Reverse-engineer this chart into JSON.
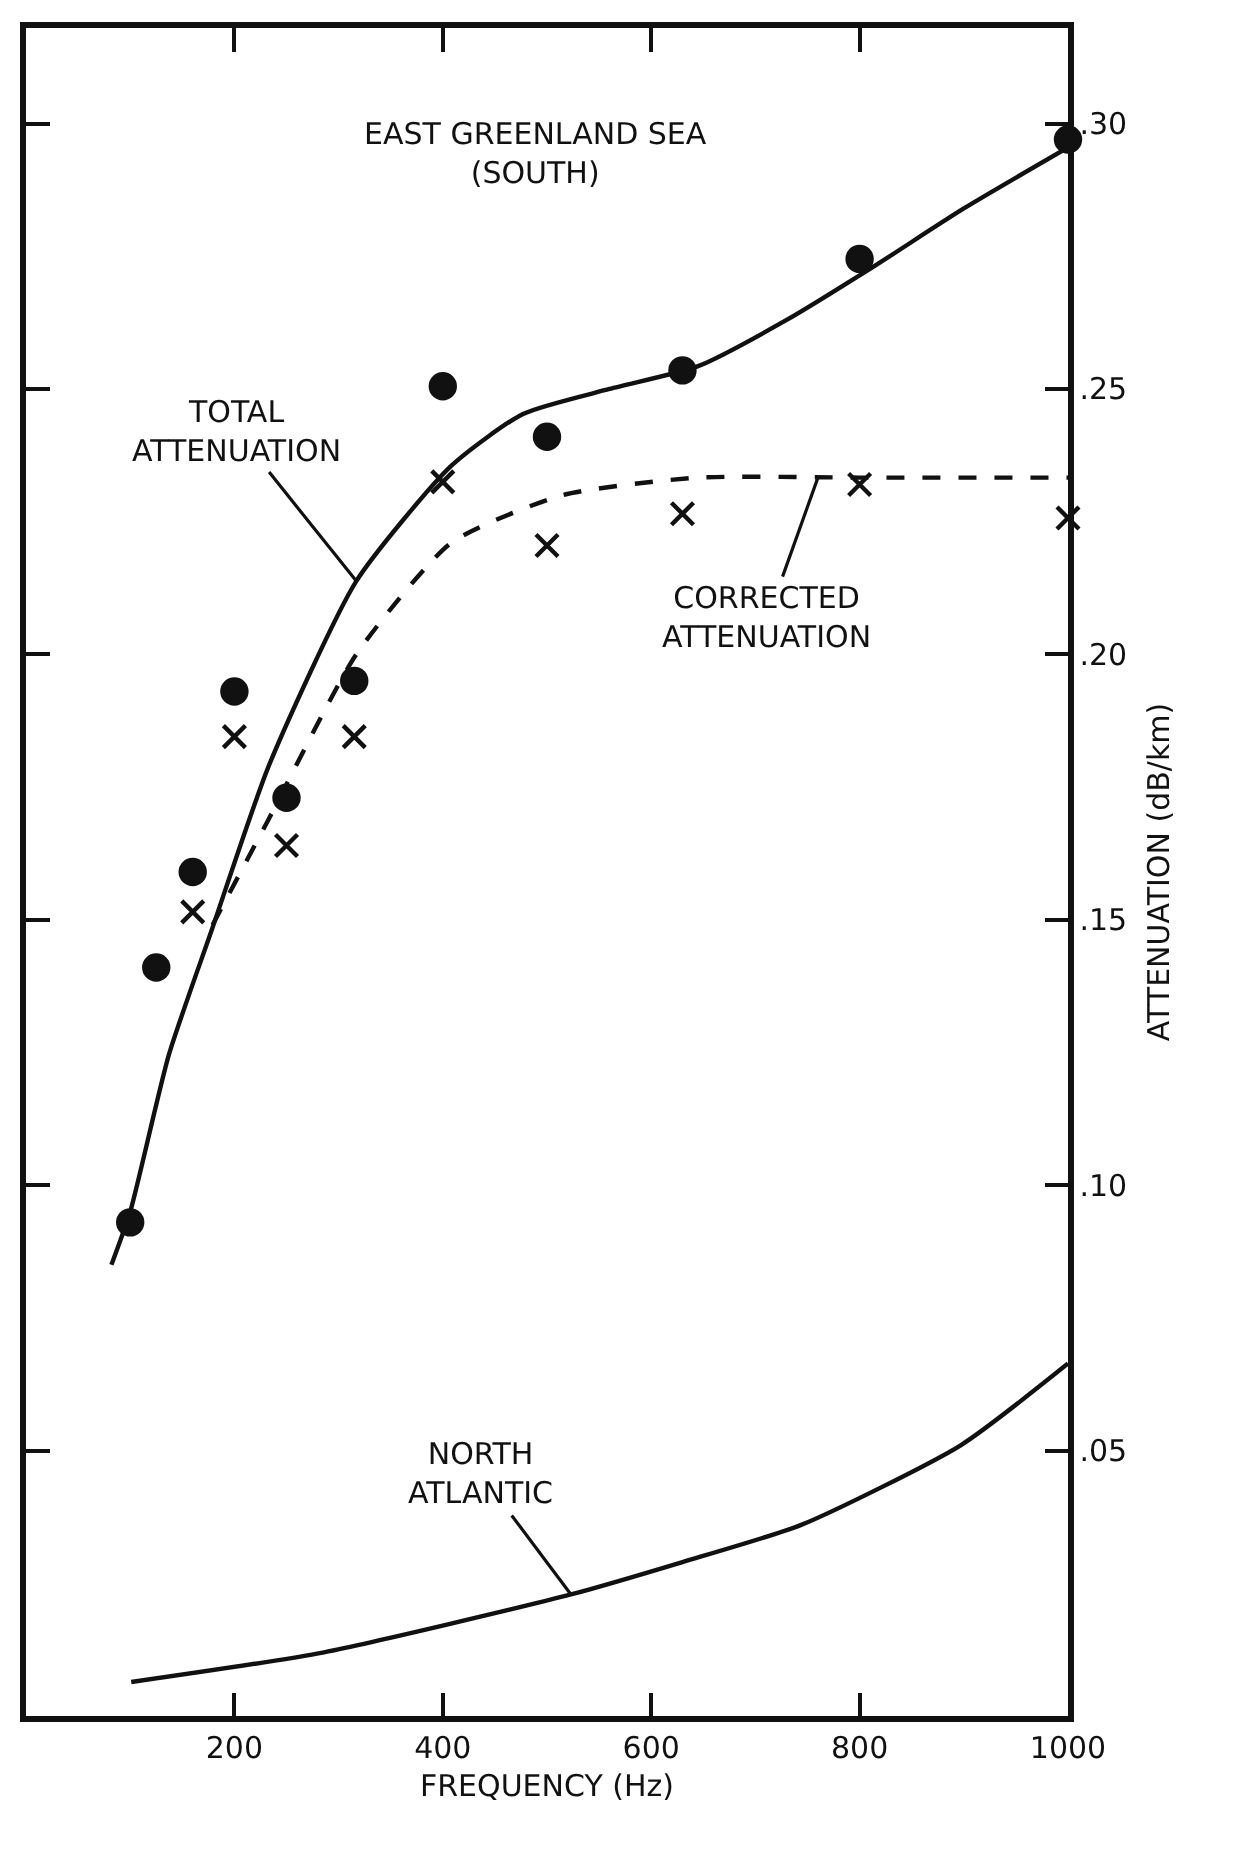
{
  "chart_data": {
    "type": "line",
    "xlabel": "FREQUENCY (Hz)",
    "ylabel": "ATTENUATION (dB/km)",
    "xlim": [
      0,
      1000
    ],
    "xticks": [
      {
        "value": 200,
        "label": "200"
      },
      {
        "value": 400,
        "label": "400"
      },
      {
        "value": 600,
        "label": "600"
      },
      {
        "value": 800,
        "label": "800"
      },
      {
        "value": 1000,
        "label": "1000"
      }
    ],
    "ylim": [
      0,
      0.318
    ],
    "yticks": [
      {
        "value": 0.05,
        "label": ".05"
      },
      {
        "value": 0.1,
        "label": ".10"
      },
      {
        "value": 0.15,
        "label": ".15"
      },
      {
        "value": 0.2,
        "label": ".20"
      },
      {
        "value": 0.25,
        "label": ".25"
      },
      {
        "value": 0.3,
        "label": ".30"
      }
    ],
    "series": [
      {
        "line_style": "solid",
        "color": "#111111",
        "x": [
          82,
          100,
          137,
          179,
          233,
          317,
          408,
          477,
          560,
          645,
          730,
          813,
          900,
          1000
        ],
        "values": [
          0.085,
          0.095,
          0.1245,
          0.1485,
          0.179,
          0.2138,
          0.2355,
          0.2453,
          0.25,
          0.2543,
          0.263,
          0.273,
          0.284,
          0.2955
        ]
      },
      {
        "line_style": "dashed",
        "color": "#111111",
        "x": [
          179,
          233,
          317,
          408,
          515,
          645,
          800,
          1000
        ],
        "values": [
          0.149,
          0.169,
          0.2,
          0.221,
          0.23,
          0.2333,
          0.2333,
          0.2333
        ]
      },
      {
        "line_style": "solid",
        "color": "#111111",
        "x": [
          101,
          286,
          523,
          630,
          744,
          897,
          1000
        ],
        "values": [
          0.0064,
          0.012,
          0.0229,
          0.029,
          0.036,
          0.051,
          0.0664
        ]
      },
      {
        "type": "scatter",
        "marker": "circle",
        "color": "#111111",
        "x": [
          100,
          125,
          160,
          200,
          250,
          315,
          400,
          500,
          630,
          800,
          1000
        ],
        "values": [
          0.093,
          0.141,
          0.159,
          0.193,
          0.173,
          0.195,
          0.2505,
          0.241,
          0.2535,
          0.2745,
          0.297
        ]
      },
      {
        "type": "scatter",
        "marker": "cross",
        "color": "#111111",
        "x": [
          160,
          200,
          250,
          315,
          400,
          500,
          630,
          800,
          1000
        ],
        "values": [
          0.1515,
          0.1845,
          0.164,
          0.1845,
          0.2325,
          0.2205,
          0.2265,
          0.232,
          0.2257
        ]
      }
    ],
    "annotations": [
      {
        "text": "EAST GREENLAND SEA\n(SOUTH)"
      },
      {
        "text": "TOTAL\nATTENUATION",
        "x": 317,
        "y": 0.2138
      },
      {
        "text": "CORRECTED\nATTENUATION",
        "x": 760,
        "y": 0.2333
      },
      {
        "text": "NORTH\nATLANTIC",
        "x": 523,
        "y": 0.0229
      }
    ]
  }
}
